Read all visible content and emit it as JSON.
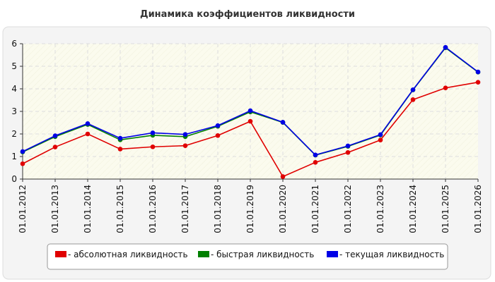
{
  "chart_data": {
    "type": "line",
    "title": "Динамика коэффициентов ликвидности",
    "xlabel": "",
    "ylabel": "",
    "ylim": [
      0,
      6
    ],
    "yticks": [
      "0",
      "1",
      "2",
      "3",
      "4",
      "5",
      "6"
    ],
    "grid": true,
    "legend_position": "bottom",
    "categories": [
      "01.01.2012",
      "01.01.2013",
      "01.01.2014",
      "01.01.2015",
      "01.01.2016",
      "01.01.2017",
      "01.01.2018",
      "01.01.2019",
      "01.01.2020",
      "01.01.2021",
      "01.01.2022",
      "01.01.2023",
      "01.01.2024",
      "01.01.2025",
      "01.01.2026"
    ],
    "series": [
      {
        "name": "- абсолютная ликвидность",
        "color": "#e00000",
        "values": [
          0.68,
          1.42,
          2.0,
          1.33,
          1.43,
          1.48,
          1.93,
          2.56,
          0.11,
          0.74,
          1.18,
          1.73,
          3.52,
          4.04,
          4.29
        ]
      },
      {
        "name": "- быстрая ликвидность",
        "color": "#008000",
        "values": [
          1.2,
          1.88,
          2.42,
          1.74,
          1.94,
          1.88,
          2.34,
          2.98,
          2.51,
          1.06,
          1.45,
          1.95,
          3.95,
          5.82,
          4.74
        ]
      },
      {
        "name": "- текущая ликвидность",
        "color": "#0000e6",
        "values": [
          1.22,
          1.92,
          2.46,
          1.81,
          2.05,
          1.98,
          2.37,
          3.03,
          2.52,
          1.07,
          1.47,
          1.97,
          3.96,
          5.84,
          4.75
        ]
      }
    ]
  }
}
